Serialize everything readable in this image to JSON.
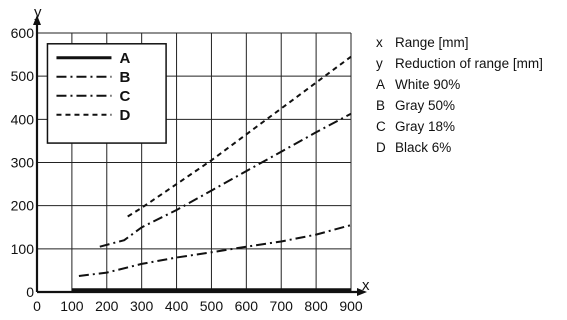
{
  "chart_data": {
    "type": "line",
    "x_axis_letter": "x",
    "y_axis_letter": "y",
    "xlim": [
      0,
      900
    ],
    "ylim": [
      0,
      600
    ],
    "x_ticks": [
      0,
      100,
      200,
      300,
      400,
      500,
      600,
      700,
      800,
      900
    ],
    "y_ticks": [
      0,
      100,
      200,
      300,
      400,
      500,
      600
    ],
    "grid": true,
    "legend_placement": "top-left",
    "series": [
      {
        "name": "A",
        "dash": "solid",
        "x": [
          100,
          900
        ],
        "y": [
          5,
          5
        ]
      },
      {
        "name": "B",
        "dash": "dash-dot",
        "x": [
          180,
          250,
          300,
          400,
          500,
          600,
          700,
          800,
          900
        ],
        "y": [
          105,
          120,
          150,
          190,
          235,
          280,
          325,
          370,
          413
        ]
      },
      {
        "name": "C",
        "dash": "dash-dot",
        "x": [
          120,
          200,
          300,
          400,
          500,
          600,
          700,
          800,
          900
        ],
        "y": [
          37,
          45,
          65,
          80,
          92,
          105,
          117,
          133,
          155
        ]
      },
      {
        "name": "D",
        "dash": "short-dash",
        "x": [
          260,
          300,
          400,
          500,
          600,
          700,
          800,
          900
        ],
        "y": [
          175,
          195,
          250,
          305,
          365,
          425,
          485,
          545
        ]
      }
    ],
    "key": [
      {
        "code": "x",
        "text": "Range [mm]"
      },
      {
        "code": "y",
        "text": "Reduction of range [mm]"
      },
      {
        "code": "A",
        "text": "White 90%"
      },
      {
        "code": "B",
        "text": "Gray 50%"
      },
      {
        "code": "C",
        "text": "Gray 18%"
      },
      {
        "code": "D",
        "text": "Black 6%"
      }
    ]
  }
}
